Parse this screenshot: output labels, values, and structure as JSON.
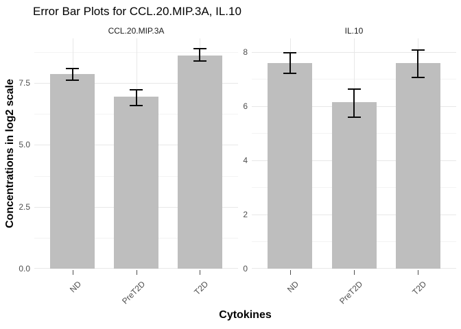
{
  "title": "Error Bar Plots for CCL.20.MIP.3A, IL.10",
  "chart_data": {
    "type": "bar",
    "title": "Error Bar Plots for CCL.20.MIP.3A, IL.10",
    "xlabel": "Cytokines",
    "ylabel": "Concentrations in log2 scale",
    "categories": [
      "ND",
      "PreT2D",
      "T2D"
    ],
    "grid": true,
    "legend_position": "none",
    "facets": [
      {
        "label": "CCL.20.MIP.3A",
        "ylim": [
          0,
          9.3
        ],
        "yticks": [
          0,
          2.5,
          5,
          7.5
        ],
        "ytick_labels": [
          "0.0",
          "2.5",
          "5.0",
          "7.5"
        ],
        "minor_ticks": [
          1.25,
          3.75,
          6.25,
          8.75
        ],
        "values": [
          7.85,
          6.95,
          8.6
        ],
        "error_low": [
          7.6,
          6.6,
          8.4
        ],
        "error_high": [
          8.1,
          7.25,
          8.9
        ]
      },
      {
        "label": "IL.10",
        "ylim": [
          0,
          8.5
        ],
        "yticks": [
          0,
          2,
          4,
          6,
          8
        ],
        "ytick_labels": [
          "0",
          "2",
          "4",
          "6",
          "8"
        ],
        "minor_ticks": [
          1,
          3,
          5,
          7
        ],
        "values": [
          7.6,
          6.15,
          7.6
        ],
        "error_low": [
          7.2,
          5.6,
          7.05
        ],
        "error_high": [
          8.0,
          6.65,
          8.1
        ]
      }
    ],
    "colors": {
      "bar": "#BEBEBE",
      "grid_major": "#E7E7E7",
      "grid_minor": "#F3F3F3",
      "error_bar": "#0a0a0a",
      "axis_text": "#4d4d4d",
      "strip_text": "#1a1a1a",
      "tick_mark": "#4d4d4d",
      "background": "#ffffff"
    }
  }
}
